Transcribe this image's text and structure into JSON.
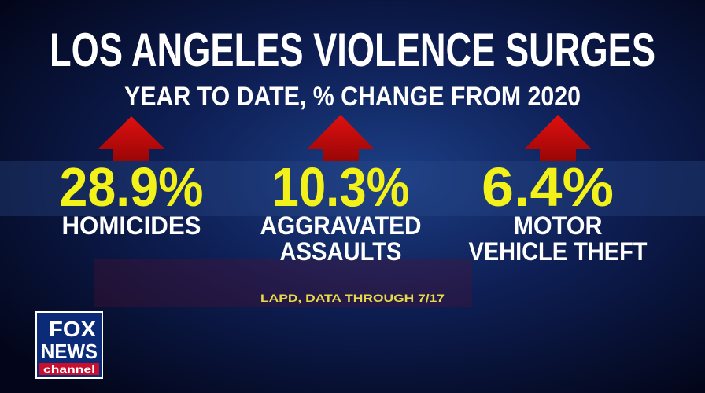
{
  "header": {
    "title": "LOS ANGELES VIOLENCE SURGES",
    "subtitle": "YEAR TO DATE, % CHANGE FROM 2020"
  },
  "stats": [
    {
      "value": "28.9%",
      "label": [
        "HOMICIDES"
      ]
    },
    {
      "value": "10.3%",
      "label": [
        "AGGRAVATED",
        "ASSAULTS"
      ]
    },
    {
      "value": "6.4%",
      "label": [
        "MOTOR",
        "VEHICLE THEFT"
      ]
    }
  ],
  "source": "LAPD, DATA THROUGH 7/17",
  "logo": {
    "lines": [
      "FOX",
      "NEWS",
      "channel"
    ]
  }
}
